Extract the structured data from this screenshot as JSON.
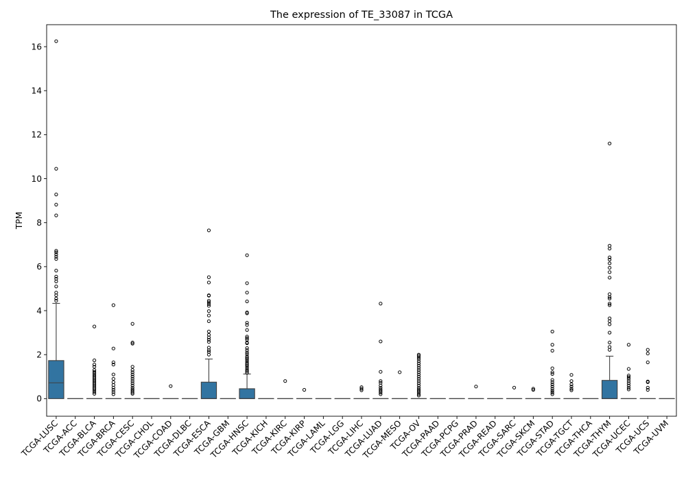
{
  "chart_data": {
    "type": "box",
    "title": "The expression of TE_33087 in TCGA",
    "xlabel": "",
    "ylabel": "TPM",
    "ylim": [
      -0.8,
      17.0
    ],
    "yticks": [
      0,
      2,
      4,
      6,
      8,
      10,
      12,
      14,
      16
    ],
    "grid": false,
    "box_color": "#3274a1",
    "categories": [
      "TCGA-LUSC",
      "TCGA-ACC",
      "TCGA-BLCA",
      "TCGA-BRCA",
      "TCGA-CESC",
      "TCGA-CHOL",
      "TCGA-COAD",
      "TCGA-DLBC",
      "TCGA-ESCA",
      "TCGA-GBM",
      "TCGA-HNSC",
      "TCGA-KICH",
      "TCGA-KIRC",
      "TCGA-KIRP",
      "TCGA-LAML",
      "TCGA-LGG",
      "TCGA-LIHC",
      "TCGA-LUAD",
      "TCGA-MESO",
      "TCGA-OV",
      "TCGA-PAAD",
      "TCGA-PCPG",
      "TCGA-PRAD",
      "TCGA-READ",
      "TCGA-SARC",
      "TCGA-SKCM",
      "TCGA-STAD",
      "TCGA-TGCT",
      "TCGA-THCA",
      "TCGA-THYM",
      "TCGA-UCEC",
      "TCGA-UCS",
      "TCGA-UVM"
    ],
    "boxes": [
      {
        "q1": 0,
        "median": 0.72,
        "q3": 1.73,
        "whisker_low": 0,
        "whisker_high": 4.33,
        "outliers": [
          16.25,
          10.45,
          9.28,
          8.82,
          8.33,
          6.72,
          6.65,
          6.55,
          6.45,
          6.35,
          5.82,
          5.55,
          5.45,
          5.33,
          5.1,
          4.82,
          4.7,
          4.55,
          4.45
        ]
      },
      {
        "q1": 0,
        "median": 0,
        "q3": 0,
        "whisker_low": 0,
        "whisker_high": 0,
        "outliers": []
      },
      {
        "q1": 0,
        "median": 0,
        "q3": 0,
        "whisker_low": 0,
        "whisker_high": 0,
        "outliers": [
          3.28,
          1.74,
          1.55,
          1.45,
          1.3,
          1.22,
          1.15,
          1.07,
          1.0,
          0.93,
          0.86,
          0.79,
          0.72,
          0.65,
          0.58,
          0.51,
          0.45,
          0.38,
          0.3,
          0.22
        ]
      },
      {
        "q1": 0,
        "median": 0,
        "q3": 0,
        "whisker_low": 0,
        "whisker_high": 0,
        "outliers": [
          4.25,
          2.28,
          1.65,
          1.55,
          1.1,
          0.9,
          0.75,
          0.62,
          0.5,
          0.4,
          0.3,
          0.2
        ]
      },
      {
        "q1": 0,
        "median": 0,
        "q3": 0,
        "whisker_low": 0,
        "whisker_high": 0,
        "outliers": [
          3.4,
          2.55,
          2.5,
          1.45,
          1.3,
          1.2,
          1.1,
          1.0,
          0.9,
          0.8,
          0.7,
          0.6,
          0.5,
          0.42,
          0.35,
          0.28,
          0.22
        ]
      },
      {
        "q1": 0,
        "median": 0,
        "q3": 0,
        "whisker_low": 0,
        "whisker_high": 0,
        "outliers": []
      },
      {
        "q1": 0,
        "median": 0,
        "q3": 0,
        "whisker_low": 0,
        "whisker_high": 0,
        "outliers": [
          0.57
        ]
      },
      {
        "q1": 0,
        "median": 0,
        "q3": 0,
        "whisker_low": 0,
        "whisker_high": 0,
        "outliers": []
      },
      {
        "q1": 0,
        "median": 0,
        "q3": 0.75,
        "whisker_low": 0,
        "whisker_high": 1.8,
        "outliers": [
          7.65,
          5.52,
          5.28,
          4.7,
          4.68,
          4.45,
          4.38,
          4.3,
          4.22,
          3.98,
          3.78,
          3.52,
          3.05,
          2.9,
          2.78,
          2.68,
          2.58,
          2.32,
          2.2,
          2.12,
          2.0
        ]
      },
      {
        "q1": 0,
        "median": 0,
        "q3": 0,
        "whisker_low": 0,
        "whisker_high": 0,
        "outliers": []
      },
      {
        "q1": 0,
        "median": 0,
        "q3": 0.45,
        "whisker_low": 0,
        "whisker_high": 1.12,
        "outliers": [
          6.52,
          5.25,
          4.82,
          4.42,
          3.92,
          3.88,
          3.45,
          3.35,
          3.12,
          2.82,
          2.75,
          2.68,
          2.55,
          2.52,
          2.3,
          2.2,
          2.1,
          2.02,
          1.92,
          1.85,
          1.78,
          1.7,
          1.62,
          1.55,
          1.48,
          1.4,
          1.32,
          1.25,
          1.18
        ]
      },
      {
        "q1": 0,
        "median": 0,
        "q3": 0,
        "whisker_low": 0,
        "whisker_high": 0,
        "outliers": []
      },
      {
        "q1": 0,
        "median": 0,
        "q3": 0,
        "whisker_low": 0,
        "whisker_high": 0,
        "outliers": [
          0.8
        ]
      },
      {
        "q1": 0,
        "median": 0,
        "q3": 0,
        "whisker_low": 0,
        "whisker_high": 0,
        "outliers": [
          0.4
        ]
      },
      {
        "q1": 0,
        "median": 0,
        "q3": 0,
        "whisker_low": 0,
        "whisker_high": 0,
        "outliers": []
      },
      {
        "q1": 0,
        "median": 0,
        "q3": 0,
        "whisker_low": 0,
        "whisker_high": 0,
        "outliers": []
      },
      {
        "q1": 0,
        "median": 0,
        "q3": 0,
        "whisker_low": 0,
        "whisker_high": 0,
        "outliers": [
          0.52,
          0.45,
          0.38
        ]
      },
      {
        "q1": 0,
        "median": 0,
        "q3": 0,
        "whisker_low": 0,
        "whisker_high": 0,
        "outliers": [
          4.32,
          2.6,
          1.22,
          0.8,
          0.72,
          0.6,
          0.5,
          0.42,
          0.35,
          0.28,
          0.2
        ]
      },
      {
        "q1": 0,
        "median": 0,
        "q3": 0,
        "whisker_low": 0,
        "whisker_high": 0,
        "outliers": [
          1.2
        ]
      },
      {
        "q1": 0,
        "median": 0,
        "q3": 0,
        "whisker_low": 0,
        "whisker_high": 0,
        "outliers": [
          2.0,
          1.95,
          1.88,
          1.8,
          1.7,
          1.6,
          1.5,
          1.4,
          1.3,
          1.2,
          1.1,
          1.0,
          0.9,
          0.8,
          0.7,
          0.6,
          0.5,
          0.42,
          0.35,
          0.28,
          0.2,
          0.14
        ]
      },
      {
        "q1": 0,
        "median": 0,
        "q3": 0,
        "whisker_low": 0,
        "whisker_high": 0,
        "outliers": []
      },
      {
        "q1": 0,
        "median": 0,
        "q3": 0,
        "whisker_low": 0,
        "whisker_high": 0,
        "outliers": []
      },
      {
        "q1": 0,
        "median": 0,
        "q3": 0,
        "whisker_low": 0,
        "whisker_high": 0,
        "outliers": [
          0.55
        ]
      },
      {
        "q1": 0,
        "median": 0,
        "q3": 0,
        "whisker_low": 0,
        "whisker_high": 0,
        "outliers": []
      },
      {
        "q1": 0,
        "median": 0,
        "q3": 0,
        "whisker_low": 0,
        "whisker_high": 0,
        "outliers": [
          0.5
        ]
      },
      {
        "q1": 0,
        "median": 0,
        "q3": 0,
        "whisker_low": 0,
        "whisker_high": 0,
        "outliers": [
          0.45,
          0.4
        ]
      },
      {
        "q1": 0,
        "median": 0,
        "q3": 0,
        "whisker_low": 0,
        "whisker_high": 0,
        "outliers": [
          3.05,
          2.45,
          2.18,
          1.38,
          1.2,
          1.12,
          0.85,
          0.75,
          0.65,
          0.55,
          0.45,
          0.36,
          0.28,
          0.2
        ]
      },
      {
        "q1": 0,
        "median": 0,
        "q3": 0,
        "whisker_low": 0,
        "whisker_high": 0,
        "outliers": [
          1.08,
          0.8,
          0.65,
          0.55,
          0.45,
          0.38
        ]
      },
      {
        "q1": 0,
        "median": 0,
        "q3": 0,
        "whisker_low": 0,
        "whisker_high": 0,
        "outliers": []
      },
      {
        "q1": 0,
        "median": 0,
        "q3": 0.83,
        "whisker_low": 0,
        "whisker_high": 1.93,
        "outliers": [
          11.6,
          6.95,
          6.82,
          6.42,
          6.32,
          6.15,
          5.95,
          5.75,
          5.5,
          4.75,
          4.62,
          4.55,
          4.32,
          4.25,
          3.65,
          3.52,
          3.38,
          3.0,
          2.55,
          2.35,
          2.22
        ]
      },
      {
        "q1": 0,
        "median": 0,
        "q3": 0,
        "whisker_low": 0,
        "whisker_high": 0,
        "outliers": [
          2.45,
          1.35,
          1.05,
          0.98,
          0.9,
          0.8,
          0.7,
          0.6,
          0.5,
          0.42
        ]
      },
      {
        "q1": 0,
        "median": 0,
        "q3": 0,
        "whisker_low": 0,
        "whisker_high": 0,
        "outliers": [
          2.22,
          2.05,
          1.65,
          0.78,
          0.75,
          0.5,
          0.4
        ]
      },
      {
        "q1": 0,
        "median": 0,
        "q3": 0,
        "whisker_low": 0,
        "whisker_high": 0,
        "outliers": []
      }
    ]
  }
}
